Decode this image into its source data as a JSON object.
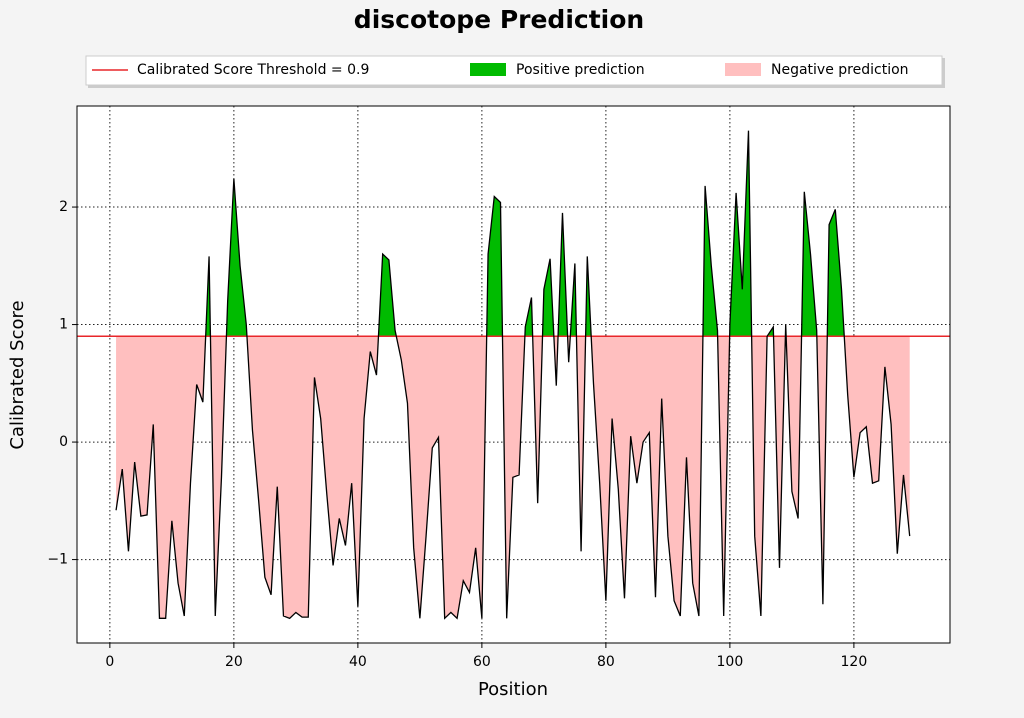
{
  "chart_data": {
    "type": "threshold-area",
    "title": "discotope Prediction",
    "xlabel": "Position",
    "ylabel": "Calibrated Score",
    "threshold": 0.9,
    "threshold_label": "Calibrated Score Threshold = 0.9",
    "threshold_color": "#e8262a",
    "line_color": "#000000",
    "series": [
      {
        "name": "Positive prediction",
        "color": "#00bb00"
      },
      {
        "name": "Negative prediction",
        "color": "#ffbfbf"
      }
    ],
    "x": [
      1,
      2,
      3,
      4,
      5,
      6,
      7,
      8,
      9,
      10,
      11,
      12,
      13,
      14,
      15,
      16,
      17,
      18,
      19,
      20,
      21,
      22,
      23,
      24,
      25,
      26,
      27,
      28,
      29,
      30,
      31,
      32,
      33,
      34,
      35,
      36,
      37,
      38,
      39,
      40,
      41,
      42,
      43,
      44,
      45,
      46,
      47,
      48,
      49,
      50,
      51,
      52,
      53,
      54,
      55,
      56,
      57,
      58,
      59,
      60,
      61,
      62,
      63,
      64,
      65,
      66,
      67,
      68,
      69,
      70,
      71,
      72,
      73,
      74,
      75,
      76,
      77,
      78,
      79,
      80,
      81,
      82,
      83,
      84,
      85,
      86,
      87,
      88,
      89,
      90,
      91,
      92,
      93,
      94,
      95,
      96,
      97,
      98,
      99,
      100,
      101,
      102,
      103,
      104,
      105,
      106,
      107,
      108,
      109,
      110,
      111,
      112,
      113,
      114,
      115,
      116,
      117,
      118,
      119,
      120,
      121,
      122,
      123,
      124,
      125,
      126,
      127,
      128,
      129
    ],
    "values": [
      -0.58,
      -0.23,
      -0.93,
      -0.17,
      -0.63,
      -0.62,
      0.15,
      -1.5,
      -1.5,
      -0.67,
      -1.2,
      -1.48,
      -0.35,
      0.49,
      0.34,
      1.58,
      -1.48,
      -0.3,
      1.2,
      2.24,
      1.5,
      1.0,
      0.1,
      -0.5,
      -1.15,
      -1.3,
      -0.38,
      -1.48,
      -1.5,
      -1.45,
      -1.49,
      -1.49,
      0.55,
      0.2,
      -0.45,
      -1.05,
      -0.65,
      -0.88,
      -0.35,
      -1.4,
      0.2,
      0.77,
      0.57,
      1.6,
      1.55,
      0.95,
      0.7,
      0.33,
      -0.9,
      -1.5,
      -0.8,
      -0.05,
      0.04,
      -1.5,
      -1.45,
      -1.5,
      -1.18,
      -1.28,
      -0.9,
      -1.5,
      1.6,
      2.09,
      2.04,
      -1.5,
      -0.3,
      -0.28,
      0.98,
      1.23,
      -0.52,
      1.3,
      1.56,
      0.48,
      1.95,
      0.68,
      1.52,
      -0.93,
      1.58,
      0.5,
      -0.35,
      -1.35,
      0.2,
      -0.4,
      -1.33,
      0.05,
      -0.35,
      0.0,
      0.08,
      -1.32,
      0.37,
      -0.8,
      -1.35,
      -1.48,
      -0.13,
      -1.2,
      -1.48,
      2.18,
      1.5,
      0.95,
      -1.48,
      1.0,
      2.12,
      1.3,
      2.65,
      -0.8,
      -1.48,
      0.9,
      0.98,
      -1.07,
      1.0,
      -0.42,
      -0.65,
      2.13,
      1.6,
      0.95,
      -1.38,
      1.85,
      1.98,
      1.3,
      0.4,
      -0.3,
      0.08,
      0.13,
      -0.35,
      -0.33,
      0.64,
      0.15,
      -0.95,
      -0.28,
      -0.8
    ],
    "xlim": [
      -5.3,
      135.5
    ],
    "ylim": [
      -1.71,
      2.86
    ],
    "xticks": [
      0,
      20,
      40,
      60,
      80,
      100,
      120
    ],
    "yticks": [
      {
        "value": -1,
        "label": "−1"
      },
      0,
      1,
      2
    ],
    "grid": true
  }
}
